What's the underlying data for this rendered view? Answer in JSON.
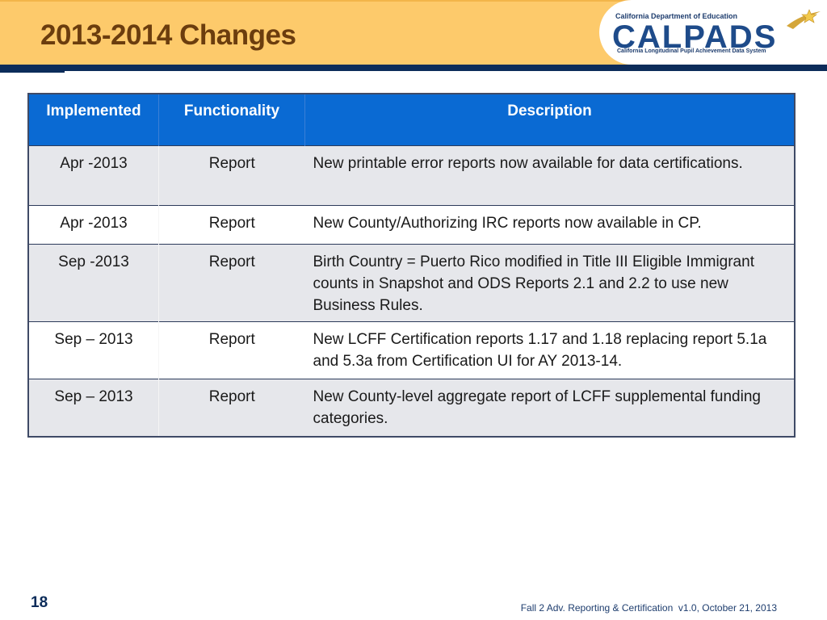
{
  "header": {
    "title": "2013-2014 Changes",
    "logo": {
      "department": "California Department of Education",
      "wordmark": "CALPADS",
      "subtitle": "California Longitudinal Pupil Achievement Data System"
    }
  },
  "table": {
    "columns": [
      "Implemented",
      "Functionality",
      "Description"
    ],
    "rows": [
      {
        "implemented": "Apr -2013",
        "functionality": "Report",
        "description": "New printable error reports now available for data certifications."
      },
      {
        "implemented": "Apr -2013",
        "functionality": "Report",
        "description": "New County/Authorizing IRC reports now available in CP."
      },
      {
        "implemented": "Sep -2013",
        "functionality": "Report",
        "description": "Birth Country = Puerto Rico modified in Title III Eligible Immigrant counts in Snapshot and ODS Reports 2.1 and 2.2 to use new Business Rules."
      },
      {
        "implemented": "Sep – 2013",
        "functionality": "Report",
        "description": "New LCFF Certification reports 1.17 and 1.18 replacing report 5.1a and 5.3a from Certification UI for AY 2013-14."
      },
      {
        "implemented": "Sep – 2013",
        "functionality": "Report",
        "description": "New County-level aggregate report of LCFF supplemental funding categories."
      }
    ]
  },
  "footer": {
    "page_number": "18",
    "caption": "Fall 2 Adv. Reporting & Certification  v1.0, October 21, 2013"
  },
  "colors": {
    "header_band": "#fdca6b",
    "title": "#6b3d0e",
    "table_header": "#0a6ad3",
    "row_shade": "#e6e7eb"
  }
}
